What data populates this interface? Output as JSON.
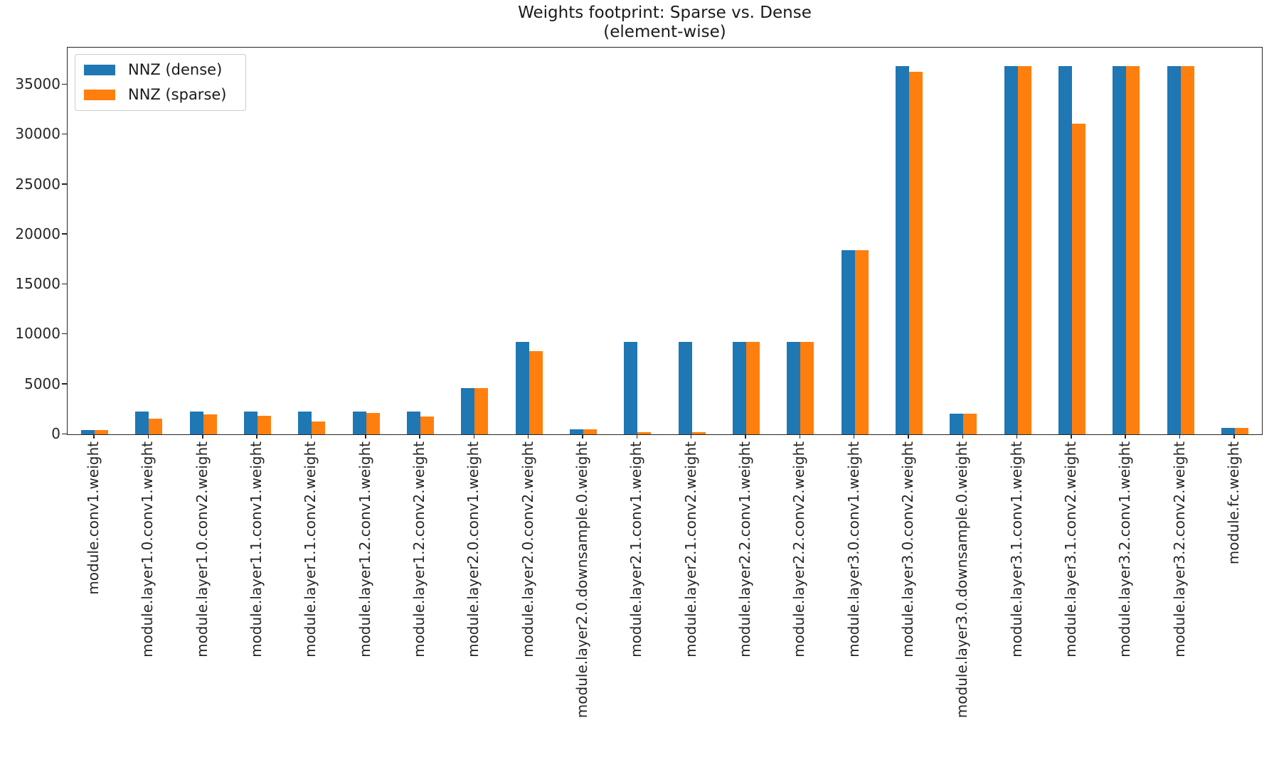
{
  "title": {
    "line1": "Weights footprint: Sparse vs. Dense",
    "line2": "(element-wise)"
  },
  "legend": {
    "entries": [
      {
        "label": "NNZ (dense)",
        "color": "#1f77b4"
      },
      {
        "label": "NNZ (sparse)",
        "color": "#ff7f0e"
      }
    ],
    "position": "upper left"
  },
  "chart_data": {
    "type": "bar",
    "title": "Weights footprint: Sparse vs. Dense\n(element-wise)",
    "xlabel": "",
    "ylabel": "",
    "grid": false,
    "ylim": [
      0,
      38700
    ],
    "yticks": [
      0,
      5000,
      10000,
      15000,
      20000,
      25000,
      30000,
      35000
    ],
    "legend_position": "upper left",
    "categories": [
      "module.conv1.weight",
      "module.layer1.0.conv1.weight",
      "module.layer1.0.conv2.weight",
      "module.layer1.1.conv1.weight",
      "module.layer1.1.conv2.weight",
      "module.layer1.2.conv1.weight",
      "module.layer1.2.conv2.weight",
      "module.layer2.0.conv1.weight",
      "module.layer2.0.conv2.weight",
      "module.layer2.0.downsample.0.weight",
      "module.layer2.1.conv1.weight",
      "module.layer2.1.conv2.weight",
      "module.layer2.2.conv1.weight",
      "module.layer2.2.conv2.weight",
      "module.layer3.0.conv1.weight",
      "module.layer3.0.conv2.weight",
      "module.layer3.0.downsample.0.weight",
      "module.layer3.1.conv1.weight",
      "module.layer3.1.conv2.weight",
      "module.layer3.2.conv1.weight",
      "module.layer3.2.conv2.weight",
      "module.fc.weight"
    ],
    "series": [
      {
        "name": "NNZ (dense)",
        "color": "#1f77b4",
        "values": [
          432,
          2304,
          2304,
          2304,
          2304,
          2304,
          2304,
          4608,
          9216,
          512,
          9216,
          9216,
          9216,
          9216,
          18432,
          36864,
          2048,
          36864,
          36864,
          36864,
          36864,
          640
        ]
      },
      {
        "name": "NNZ (sparse)",
        "color": "#ff7f0e",
        "values": [
          432,
          1550,
          2010,
          1850,
          1260,
          2140,
          1800,
          4608,
          8300,
          512,
          250,
          250,
          9216,
          9216,
          18432,
          36300,
          2048,
          36864,
          31100,
          36864,
          36864,
          640
        ]
      }
    ]
  }
}
